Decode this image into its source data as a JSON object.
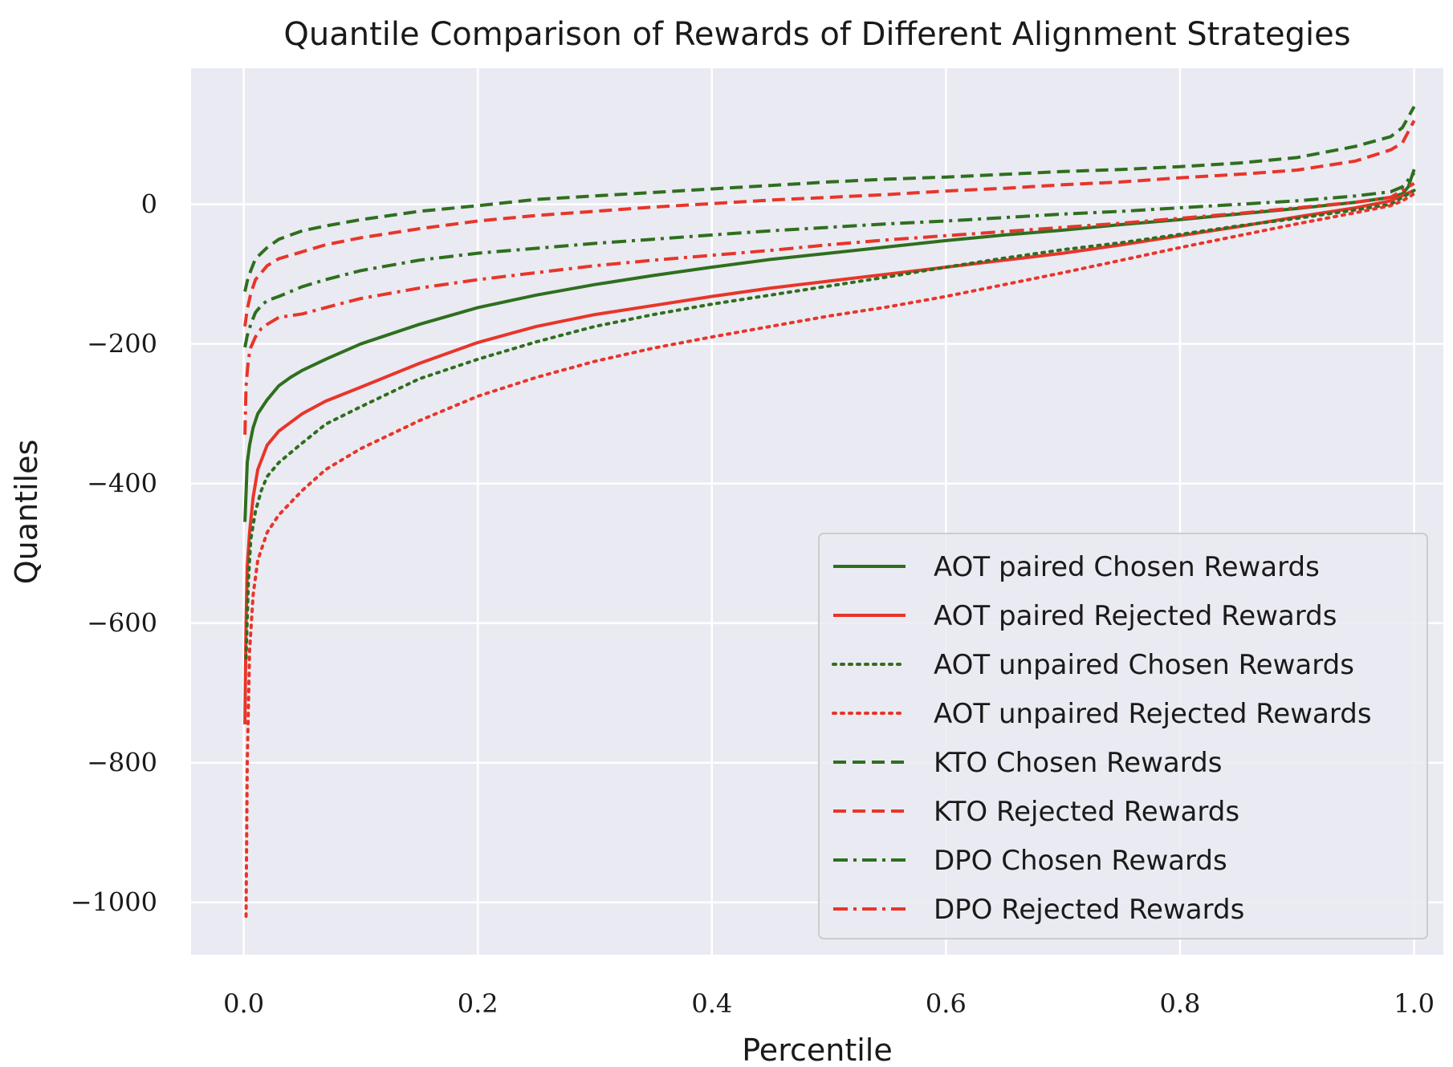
{
  "chart_data": {
    "type": "line",
    "title": "Quantile Comparison of Rewards of Different Alignment Strategies",
    "xlabel": "Percentile",
    "ylabel": "Quantiles",
    "xlim": [
      -0.045,
      1.025
    ],
    "ylim": [
      -1075,
      195
    ],
    "xticks": [
      0.0,
      0.2,
      0.4,
      0.6,
      0.8,
      1.0
    ],
    "xtick_labels": [
      "0.0",
      "0.2",
      "0.4",
      "0.6",
      "0.8",
      "1.0"
    ],
    "yticks": [
      0,
      -200,
      -400,
      -600,
      -800,
      -1000
    ],
    "ytick_labels": [
      "0",
      "−200",
      "−400",
      "−600",
      "−800",
      "−1000"
    ],
    "grid": true,
    "legend_position": "lower-right",
    "colors": {
      "chosen": "#2e6f1e",
      "rejected": "#e8352a",
      "plot_bg": "#eaeaf2",
      "grid": "#ffffff"
    },
    "series": [
      {
        "name": "AOT paired Chosen Rewards",
        "color": "#2e6f1e",
        "style": "solid",
        "x": [
          0.001,
          0.003,
          0.005,
          0.008,
          0.012,
          0.02,
          0.03,
          0.04,
          0.05,
          0.07,
          0.1,
          0.15,
          0.2,
          0.25,
          0.3,
          0.35,
          0.4,
          0.45,
          0.5,
          0.55,
          0.6,
          0.65,
          0.7,
          0.75,
          0.8,
          0.85,
          0.9,
          0.95,
          0.98,
          0.99,
          0.995,
          1.0
        ],
        "y": [
          -455,
          -370,
          -345,
          -320,
          -300,
          -280,
          -260,
          -248,
          -238,
          -222,
          -200,
          -172,
          -148,
          -130,
          -115,
          -102,
          -90,
          -79,
          -70,
          -61,
          -52,
          -44,
          -37,
          -29,
          -22,
          -14,
          -6,
          3,
          10,
          15,
          25,
          50
        ]
      },
      {
        "name": "AOT paired Rejected Rewards",
        "color": "#e8352a",
        "style": "solid",
        "x": [
          0.001,
          0.002,
          0.003,
          0.005,
          0.008,
          0.012,
          0.02,
          0.03,
          0.05,
          0.07,
          0.1,
          0.15,
          0.2,
          0.25,
          0.3,
          0.35,
          0.4,
          0.45,
          0.5,
          0.55,
          0.6,
          0.65,
          0.7,
          0.75,
          0.8,
          0.85,
          0.9,
          0.95,
          0.98,
          1.0
        ],
        "y": [
          -745,
          -600,
          -520,
          -470,
          -420,
          -380,
          -345,
          -325,
          -300,
          -282,
          -262,
          -228,
          -198,
          -175,
          -158,
          -145,
          -132,
          -120,
          -110,
          -100,
          -90,
          -80,
          -70,
          -58,
          -45,
          -32,
          -18,
          -5,
          5,
          20
        ]
      },
      {
        "name": "AOT unpaired Chosen Rewards",
        "color": "#2e6f1e",
        "style": "dotted",
        "x": [
          0.002,
          0.004,
          0.006,
          0.01,
          0.015,
          0.02,
          0.03,
          0.05,
          0.07,
          0.1,
          0.15,
          0.2,
          0.25,
          0.3,
          0.35,
          0.4,
          0.45,
          0.5,
          0.55,
          0.6,
          0.65,
          0.7,
          0.75,
          0.8,
          0.85,
          0.9,
          0.95,
          0.98,
          1.0
        ],
        "y": [
          -650,
          -540,
          -480,
          -440,
          -410,
          -390,
          -370,
          -342,
          -315,
          -290,
          -250,
          -222,
          -197,
          -175,
          -158,
          -143,
          -130,
          -117,
          -104,
          -90,
          -77,
          -65,
          -55,
          -43,
          -31,
          -20,
          -8,
          0,
          20
        ]
      },
      {
        "name": "AOT unpaired Rejected Rewards",
        "color": "#e8352a",
        "style": "dotted",
        "x": [
          0.002,
          0.003,
          0.005,
          0.008,
          0.012,
          0.02,
          0.03,
          0.05,
          0.07,
          0.1,
          0.15,
          0.2,
          0.25,
          0.3,
          0.35,
          0.4,
          0.45,
          0.5,
          0.55,
          0.6,
          0.65,
          0.7,
          0.75,
          0.8,
          0.85,
          0.9,
          0.95,
          0.98,
          0.99,
          1.0
        ],
        "y": [
          -1020,
          -800,
          -640,
          -560,
          -510,
          -470,
          -445,
          -410,
          -380,
          -350,
          -310,
          -275,
          -248,
          -225,
          -206,
          -190,
          -175,
          -160,
          -147,
          -132,
          -115,
          -98,
          -80,
          -62,
          -45,
          -28,
          -12,
          -2,
          5,
          15
        ]
      },
      {
        "name": "KTO Chosen Rewards",
        "color": "#2e6f1e",
        "style": "dashed",
        "x": [
          0.001,
          0.003,
          0.006,
          0.01,
          0.02,
          0.03,
          0.05,
          0.07,
          0.1,
          0.15,
          0.2,
          0.25,
          0.3,
          0.35,
          0.4,
          0.45,
          0.5,
          0.55,
          0.6,
          0.65,
          0.7,
          0.75,
          0.8,
          0.85,
          0.9,
          0.95,
          0.98,
          0.99,
          1.0
        ],
        "y": [
          -125,
          -110,
          -95,
          -78,
          -62,
          -50,
          -38,
          -31,
          -22,
          -10,
          -2,
          7,
          12,
          17,
          22,
          27,
          32,
          36,
          39,
          43,
          47,
          50,
          54,
          59,
          67,
          83,
          97,
          110,
          140
        ]
      },
      {
        "name": "KTO Rejected Rewards",
        "color": "#e8352a",
        "style": "dashed",
        "x": [
          0.001,
          0.003,
          0.006,
          0.01,
          0.02,
          0.03,
          0.05,
          0.07,
          0.1,
          0.15,
          0.2,
          0.25,
          0.3,
          0.35,
          0.4,
          0.45,
          0.5,
          0.55,
          0.6,
          0.65,
          0.7,
          0.75,
          0.8,
          0.85,
          0.9,
          0.95,
          0.98,
          0.99,
          1.0
        ],
        "y": [
          -175,
          -150,
          -128,
          -108,
          -88,
          -78,
          -68,
          -58,
          -48,
          -35,
          -24,
          -16,
          -10,
          -4,
          1,
          6,
          10,
          14,
          19,
          23,
          28,
          32,
          38,
          43,
          49,
          62,
          78,
          88,
          120
        ]
      },
      {
        "name": "DPO Chosen Rewards",
        "color": "#2e6f1e",
        "style": "dashdot",
        "x": [
          0.001,
          0.003,
          0.006,
          0.01,
          0.015,
          0.02,
          0.03,
          0.05,
          0.07,
          0.1,
          0.15,
          0.2,
          0.25,
          0.3,
          0.35,
          0.4,
          0.45,
          0.5,
          0.55,
          0.6,
          0.65,
          0.7,
          0.75,
          0.8,
          0.85,
          0.9,
          0.95,
          0.98,
          0.99,
          1.0
        ],
        "y": [
          -205,
          -188,
          -172,
          -155,
          -145,
          -138,
          -132,
          -118,
          -108,
          -95,
          -80,
          -70,
          -63,
          -56,
          -50,
          -44,
          -38,
          -33,
          -28,
          -24,
          -19,
          -14,
          -10,
          -5,
          0,
          5,
          12,
          18,
          25,
          45
        ]
      },
      {
        "name": "DPO Rejected Rewards",
        "color": "#e8352a",
        "style": "dashdot",
        "x": [
          0.001,
          0.002,
          0.004,
          0.006,
          0.01,
          0.015,
          0.02,
          0.03,
          0.05,
          0.07,
          0.1,
          0.15,
          0.2,
          0.25,
          0.3,
          0.35,
          0.4,
          0.45,
          0.5,
          0.55,
          0.6,
          0.65,
          0.7,
          0.75,
          0.8,
          0.85,
          0.9,
          0.95,
          0.98,
          1.0
        ],
        "y": [
          -330,
          -260,
          -222,
          -205,
          -190,
          -178,
          -172,
          -162,
          -157,
          -148,
          -135,
          -120,
          -108,
          -98,
          -88,
          -80,
          -73,
          -66,
          -58,
          -51,
          -45,
          -39,
          -33,
          -27,
          -20,
          -13,
          -5,
          3,
          10,
          30
        ]
      }
    ]
  }
}
